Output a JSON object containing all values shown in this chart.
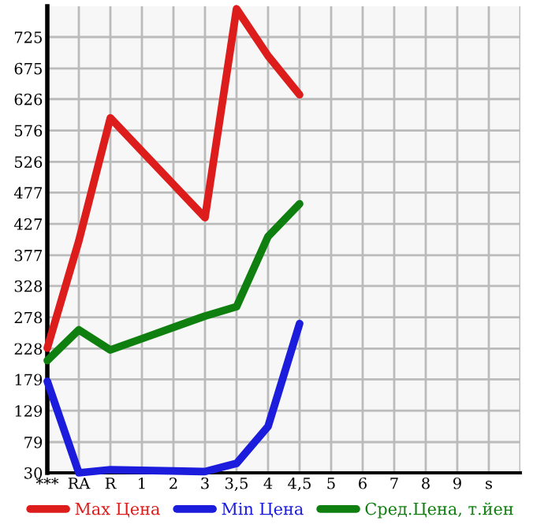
{
  "chart_data": {
    "type": "line",
    "categories": [
      "***",
      "RA",
      "R",
      "1",
      "2",
      "3",
      "3,5",
      "4",
      "4,5",
      "5",
      "6",
      "7",
      "8",
      "9",
      "s"
    ],
    "series": [
      {
        "name": "Max Цена",
        "color": "#dd1c1c",
        "values": [
          229,
          400,
          596,
          543,
          490,
          437,
          770,
          695,
          633,
          null,
          null,
          null,
          null,
          null,
          null
        ]
      },
      {
        "name": "Min Цена",
        "color": "#1c1cdd",
        "values": [
          176,
          30,
          35,
          34,
          33,
          32,
          45,
          104,
          268,
          null,
          null,
          null,
          null,
          null,
          null
        ]
      },
      {
        "name": "Сред.Цена, т.йен",
        "color": "#0f800f",
        "values": [
          209,
          258,
          226,
          244,
          262,
          280,
          295,
          407,
          459,
          null,
          null,
          null,
          null,
          null,
          null
        ]
      }
    ],
    "ylim": [
      30,
      774
    ],
    "yticks": [
      30,
      79,
      129,
      179,
      228,
      278,
      328,
      377,
      427,
      477,
      526,
      576,
      626,
      675,
      725
    ],
    "grid": true,
    "legend": "bottom",
    "marker": "none",
    "line_style": "solid"
  }
}
